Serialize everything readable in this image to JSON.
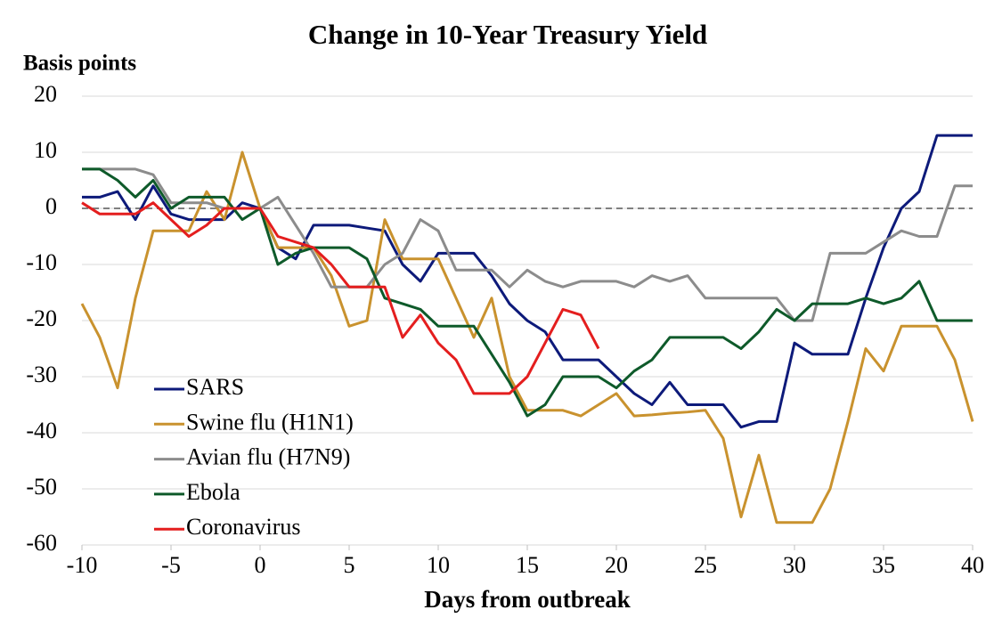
{
  "chart_data": {
    "type": "line",
    "title": "Change in 10-Year Treasury Yield",
    "y_label": "Basis points",
    "x_label": "Days from outbreak",
    "x": [
      -10,
      -9,
      -8,
      -7,
      -6,
      -5,
      -4,
      -3,
      -2,
      -1,
      0,
      1,
      2,
      3,
      4,
      5,
      6,
      7,
      8,
      9,
      10,
      11,
      12,
      13,
      14,
      15,
      16,
      17,
      18,
      19,
      20,
      21,
      22,
      23,
      24,
      25,
      26,
      27,
      28,
      29,
      30,
      31,
      32,
      33,
      34,
      35,
      36,
      37,
      38,
      39,
      40
    ],
    "series": [
      {
        "name": "SARS",
        "color": "#0d1a7a",
        "values": [
          2,
          2,
          3,
          -2,
          4,
          -1,
          -2,
          -2,
          -2,
          1,
          0,
          -7,
          -9,
          -3,
          -3,
          -3,
          -3.5,
          -4,
          -10,
          -13,
          -8,
          -8,
          -8,
          -12,
          -17,
          -20,
          -22,
          -27,
          -27,
          -27,
          -30,
          -33,
          -35,
          -31,
          -35,
          -35,
          -35,
          -39,
          -38,
          -38,
          -24,
          -26,
          -26,
          -26,
          -16,
          -7,
          0,
          3,
          13,
          13,
          13
        ]
      },
      {
        "name": "Swine flu (H1N1)",
        "color": "#c9922e",
        "values": [
          -17,
          -23,
          -32,
          -16,
          -4,
          -4,
          -4,
          3,
          -2,
          10,
          0,
          -7,
          -7,
          -7,
          -12,
          -21,
          -20,
          -2,
          -9,
          -9,
          -9,
          -16,
          -23,
          -16,
          -30,
          -36,
          -36,
          -36,
          -37,
          -35,
          -33,
          -37,
          -36.8,
          -36.5,
          -36.3,
          -36,
          -41,
          -55,
          -44,
          -56,
          -56,
          -56,
          -50,
          -38,
          -25,
          -29,
          -21,
          -21,
          -21,
          -27,
          -38
        ]
      },
      {
        "name": "Avian flu (H7N9)",
        "color": "#8c8c8c",
        "values": [
          7,
          7,
          7,
          7,
          6,
          1,
          1,
          1,
          0,
          0,
          0,
          2,
          -3,
          -8,
          -14,
          -14,
          -14,
          -10,
          -8,
          -2,
          -4,
          -11,
          -11,
          -11,
          -14,
          -11,
          -13,
          -14,
          -13,
          -13,
          -13,
          -14,
          -12,
          -13,
          -12,
          -16,
          -16,
          -16,
          -16,
          -16,
          -20,
          -20,
          -8,
          -8,
          -8,
          -6,
          -4,
          -5,
          -5,
          4,
          4
        ]
      },
      {
        "name": "Ebola",
        "color": "#0e5a2a",
        "values": [
          7,
          7,
          5,
          2,
          5,
          0,
          2,
          2,
          2,
          -2,
          0,
          -10,
          -8,
          -7,
          -7,
          -7,
          -9,
          -16,
          -17,
          -18,
          -21,
          -21,
          -21,
          -26,
          -31,
          -37,
          -35,
          -30,
          -30,
          -30,
          -32,
          -29,
          -27,
          -23,
          -23,
          -23,
          -23,
          -25,
          -22,
          -18,
          -20,
          -17,
          -17,
          -17,
          -16,
          -17,
          -16,
          -13,
          -20,
          -20,
          -20
        ]
      },
      {
        "name": "Coronavirus",
        "color": "#e41e1e",
        "values": [
          1,
          -1,
          -1,
          -1,
          1,
          -2,
          -5,
          -3,
          0,
          0,
          0,
          -5,
          -6,
          -7,
          -10,
          -14,
          -14,
          -14,
          -23,
          -19,
          -24,
          -27,
          -33,
          -33,
          -33,
          -30,
          -24,
          -18,
          -19,
          -25,
          null,
          null,
          null,
          null,
          null,
          null,
          null,
          null,
          null,
          null,
          null,
          null,
          null,
          null,
          null,
          null,
          null,
          null,
          null,
          null,
          null
        ]
      }
    ],
    "xlim": [
      -10,
      40
    ],
    "xticks": [
      -10,
      -5,
      0,
      5,
      10,
      15,
      20,
      25,
      30,
      35,
      40
    ],
    "ylim": [
      -60,
      20
    ],
    "yticks": [
      -60,
      -50,
      -40,
      -30,
      -20,
      -10,
      0,
      10,
      20
    ],
    "grid": true,
    "legend": "lower-left"
  }
}
